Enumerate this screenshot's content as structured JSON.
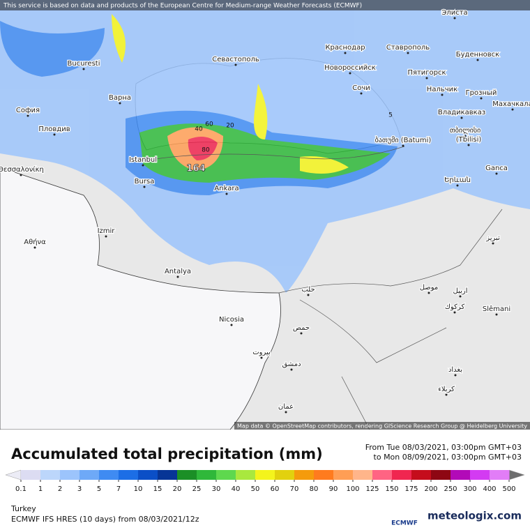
{
  "header": {
    "notice": "This service is based on data and products of the European Centre for Medium-range Weather Forecasts (ECMWF)"
  },
  "map": {
    "max_value": 164,
    "labels": [
      "Элиста",
      "Bucuresti",
      "София",
      "Пловдив",
      "Варна",
      "Севастополь",
      "Краснодар",
      "Ставрополь",
      "Новороссийск",
      "Буденновск",
      "Пятигорск",
      "Сочи",
      "Нальчик",
      "Грозный",
      "Махачкала",
      "Владикавказ",
      "თბილისი",
      "(Tbilisi)",
      "ბათუმი (Batumi)",
      "Istanbul",
      "Bursa",
      "Ankara",
      "Ganca",
      "Երևան",
      "Θεσσαλονίκη",
      "Izmir",
      "Αθήνα",
      "Antalya",
      "Nicosia",
      "تبريز",
      "Slêmani",
      "حلب",
      "حمص",
      "بيروت",
      "دمشق",
      "موصل",
      "اربيل",
      "كركوك",
      "بغداد",
      "كربلاء",
      "عمان"
    ],
    "contour_labels": [
      5,
      20,
      40,
      60,
      80
    ],
    "attribution": "Map data © OpenStreetMap contributors, rendering GIScience Research Group @ Heidelberg University"
  },
  "legend": {
    "title": "Accumulated total precipitation (mm)",
    "period_from": "From Tue 08/03/2021, 03:00pm GMT+03",
    "period_to": "to Mon 08/09/2021, 03:00pm GMT+03",
    "ticks": [
      0.1,
      1,
      2,
      3,
      5,
      7,
      10,
      15,
      20,
      25,
      30,
      40,
      50,
      60,
      70,
      80,
      90,
      100,
      125,
      150,
      175,
      200,
      250,
      300,
      400,
      500
    ],
    "colors": [
      "#dcdcf2",
      "#bcd6fb",
      "#9cc4fc",
      "#6ea9f7",
      "#3f8bf2",
      "#1c6ee6",
      "#0b4fc7",
      "#073596",
      "#1b8f26",
      "#2fb83a",
      "#5ed84e",
      "#a9e83e",
      "#f4f41c",
      "#e2d10e",
      "#f59b0c",
      "#ff7b1e",
      "#ff9e55",
      "#ffb58a",
      "#ff6483",
      "#f02650",
      "#c50d1c",
      "#8e0713",
      "#b20ab8",
      "#d33bf2",
      "#e27df7"
    ]
  },
  "footer": {
    "region": "Turkey",
    "model": "ECMWF IFS HRES (10 days) from 08/03/2021/12z",
    "logo_left": "ECMWF",
    "logo_right": "meteologix.com"
  }
}
